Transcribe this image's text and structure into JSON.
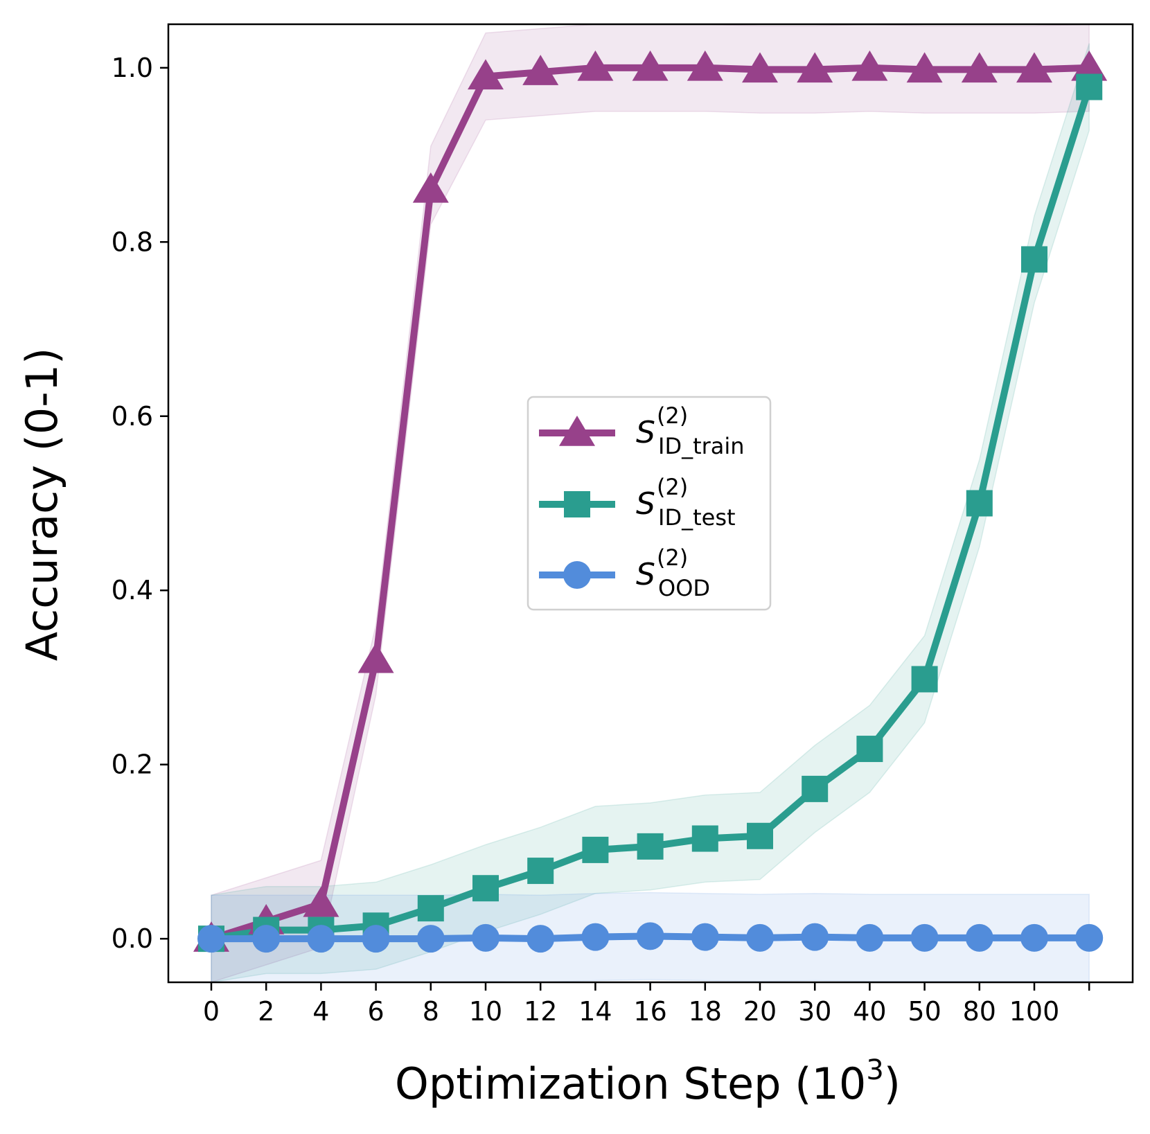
{
  "chart_data": {
    "type": "line",
    "title": "",
    "xlabel": "Optimization Step (10",
    "xlabel_sup": "3",
    "xlabel_close": ")",
    "ylabel": "Accuracy (0-1)",
    "ylim": [
      -0.05,
      1.05
    ],
    "yticks": [
      "0.0",
      "0.2",
      "0.4",
      "0.6",
      "0.8",
      "1.0"
    ],
    "ytick_values": [
      0.0,
      0.2,
      0.4,
      0.6,
      0.8,
      1.0
    ],
    "categories": [
      "0",
      "2",
      "4",
      "6",
      "8",
      "10",
      "12",
      "14",
      "16",
      "18",
      "20",
      "30",
      "40",
      "50",
      "80",
      "100",
      ""
    ],
    "grid": false,
    "legend_position": "center",
    "series": [
      {
        "key": "id_train",
        "name": "S",
        "name_sup": "(2)",
        "name_sub": "ID_train",
        "color": "#97418A",
        "marker": "triangle",
        "values": [
          0.0,
          0.02,
          0.04,
          0.32,
          0.86,
          0.99,
          0.995,
          1.0,
          1.0,
          1.0,
          0.998,
          0.998,
          1.0,
          0.998,
          0.998,
          0.998,
          1.0
        ],
        "band_lower": [
          -0.05,
          -0.03,
          -0.01,
          0.28,
          0.82,
          0.94,
          0.945,
          0.95,
          0.95,
          0.95,
          0.948,
          0.948,
          0.95,
          0.948,
          0.948,
          0.948,
          0.95
        ],
        "band_upper": [
          0.05,
          0.07,
          0.09,
          0.36,
          0.91,
          1.04,
          1.045,
          1.05,
          1.05,
          1.05,
          1.048,
          1.048,
          1.05,
          1.048,
          1.048,
          1.048,
          1.05
        ]
      },
      {
        "key": "id_test",
        "name": "S",
        "name_sup": "(2)",
        "name_sub": "ID_test",
        "color": "#2A9D8F",
        "marker": "square",
        "values": [
          0.0,
          0.01,
          0.01,
          0.015,
          0.035,
          0.058,
          0.078,
          0.102,
          0.106,
          0.115,
          0.118,
          0.172,
          0.218,
          0.298,
          0.5,
          0.78,
          0.978
        ],
        "band_lower": [
          -0.05,
          -0.04,
          -0.04,
          -0.035,
          -0.015,
          0.008,
          0.028,
          0.052,
          0.056,
          0.065,
          0.068,
          0.122,
          0.168,
          0.248,
          0.45,
          0.73,
          0.928
        ],
        "band_upper": [
          0.05,
          0.06,
          0.06,
          0.065,
          0.085,
          0.108,
          0.128,
          0.152,
          0.156,
          0.165,
          0.168,
          0.222,
          0.268,
          0.348,
          0.55,
          0.83,
          1.028
        ]
      },
      {
        "key": "ood",
        "name": "S",
        "name_sup": "(2)",
        "name_sub": "OOD",
        "color": "#528CDB",
        "marker": "circle",
        "values": [
          0.0,
          0.0,
          0.0,
          0.0,
          0.0,
          0.001,
          0.0,
          0.002,
          0.003,
          0.002,
          0.001,
          0.002,
          0.001,
          0.001,
          0.001,
          0.001,
          0.001
        ],
        "band_lower": [
          -0.05,
          -0.05,
          -0.05,
          -0.05,
          -0.05,
          -0.049,
          -0.05,
          -0.048,
          -0.047,
          -0.048,
          -0.049,
          -0.048,
          -0.049,
          -0.049,
          -0.049,
          -0.049,
          -0.049
        ],
        "band_upper": [
          0.05,
          0.05,
          0.05,
          0.05,
          0.05,
          0.051,
          0.05,
          0.052,
          0.053,
          0.052,
          0.051,
          0.052,
          0.051,
          0.051,
          0.051,
          0.051,
          0.051
        ]
      }
    ]
  }
}
